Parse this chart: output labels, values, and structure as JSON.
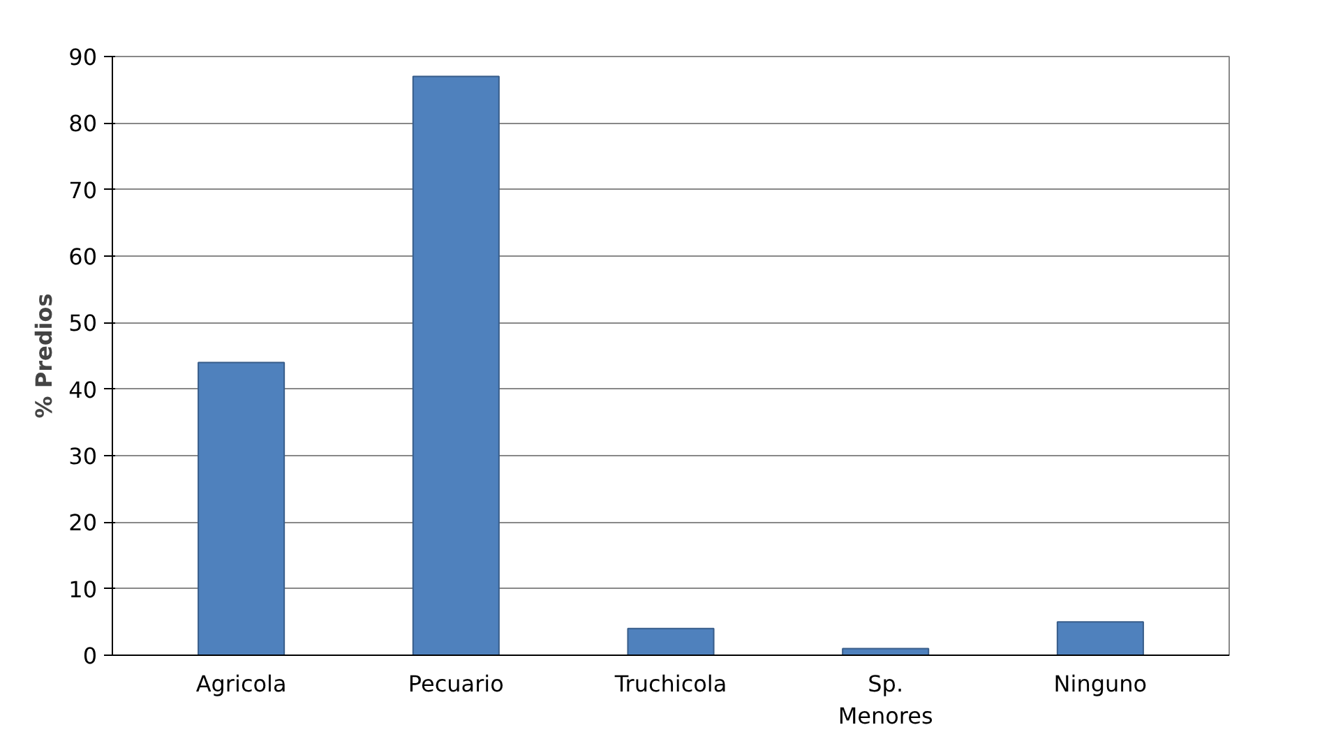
{
  "chart_data": {
    "type": "bar",
    "ylabel": "% Predios",
    "categories": [
      "Agricola",
      "Pecuario",
      "Truchicola",
      "Sp. Menores",
      "Ninguno"
    ],
    "values": [
      44,
      87,
      4,
      1,
      5
    ],
    "color": "#4f81bd",
    "ylim": [
      0,
      90
    ],
    "yticks": [
      0,
      10,
      20,
      30,
      40,
      50,
      60,
      70,
      80,
      90
    ],
    "grid": "y"
  }
}
